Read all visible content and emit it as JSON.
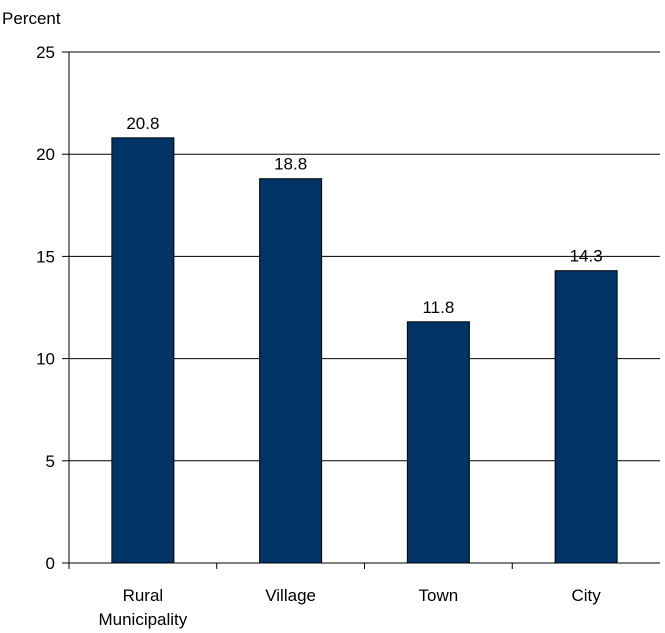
{
  "chart_data": {
    "type": "bar",
    "title": "",
    "ylabel": "Percent",
    "xlabel": "",
    "categories": [
      [
        "Rural",
        "Municipality"
      ],
      [
        "Village"
      ],
      [
        "Town"
      ],
      [
        "City"
      ]
    ],
    "values": [
      20.8,
      18.8,
      11.8,
      14.3
    ],
    "value_labels": [
      "20.8",
      "18.8",
      "11.8",
      "14.3"
    ],
    "ylim": [
      0,
      25
    ],
    "yticks": [
      0,
      5,
      10,
      15,
      20,
      25
    ],
    "grid": true,
    "legend": "none",
    "bar_color": "#003366"
  }
}
